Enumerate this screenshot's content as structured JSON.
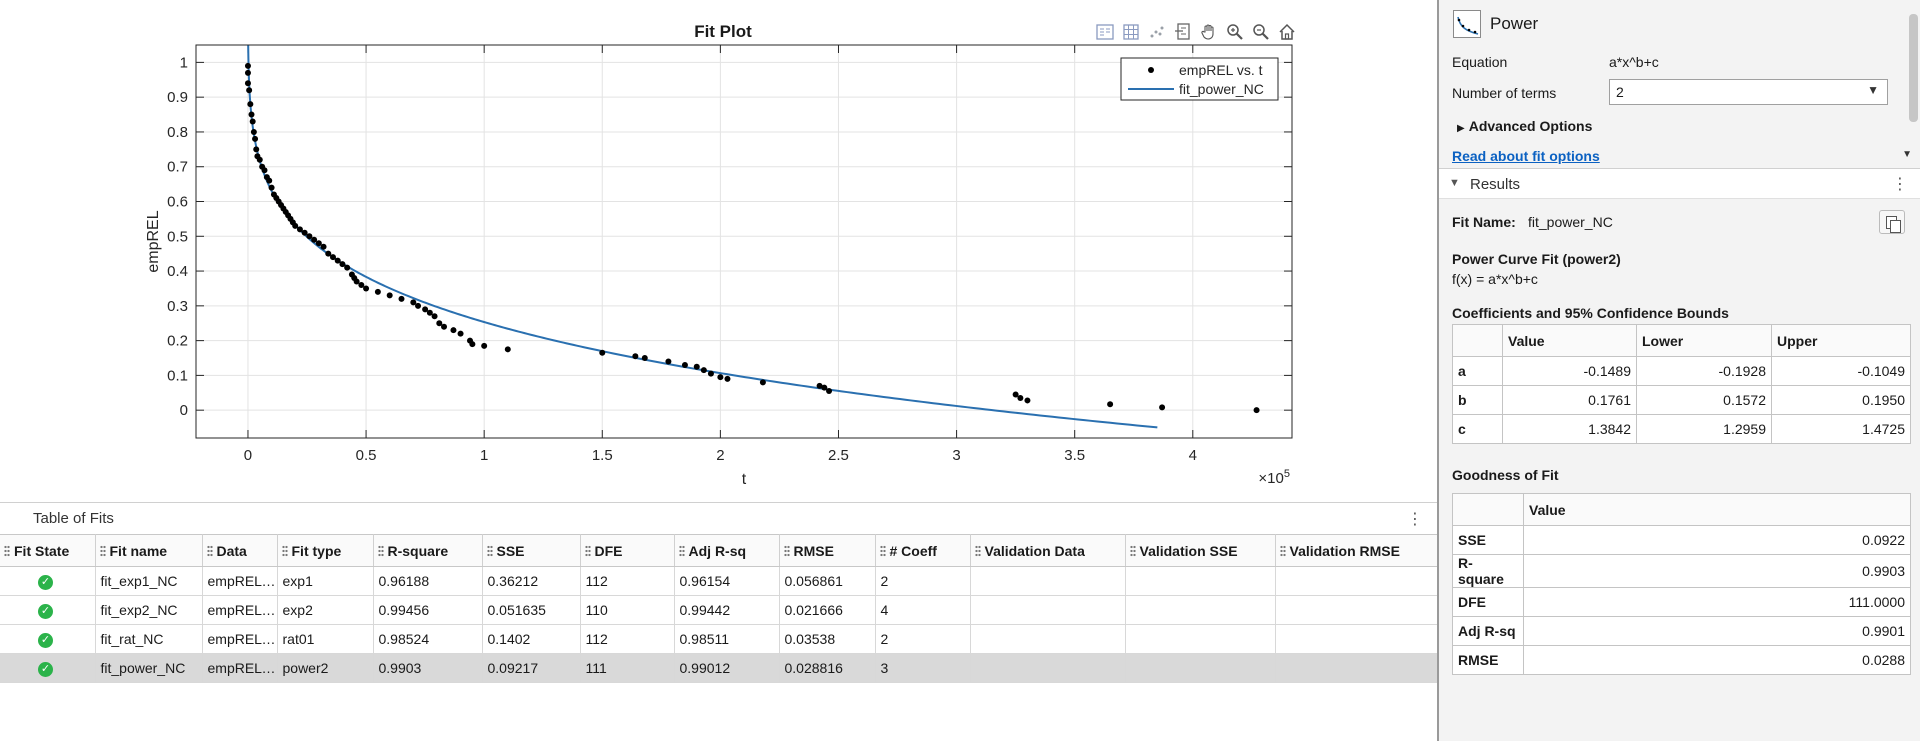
{
  "plot": {
    "title": "Fit Plot",
    "toolbar": [
      "legend-icon",
      "grid-icon",
      "data-cursor-icon",
      "exclude-icon",
      "pan-icon",
      "zoom-in-icon",
      "zoom-out-icon",
      "home-icon"
    ]
  },
  "chart_data": {
    "type": "scatter",
    "title": "Fit Plot",
    "xlabel": "t",
    "ylabel": "empREL",
    "x_exponent_label": "×10^5",
    "xlim": [
      -0.22,
      4.42
    ],
    "ylim": [
      -0.08,
      1.05
    ],
    "x_ticks": [
      0,
      0.5,
      1,
      1.5,
      2,
      2.5,
      3,
      3.5,
      4
    ],
    "x_tick_labels": [
      "0",
      "0.5",
      "1",
      "1.5",
      "2",
      "2.5",
      "3",
      "3.5",
      "4"
    ],
    "y_ticks": [
      0,
      0.1,
      0.2,
      0.3,
      0.4,
      0.5,
      0.6,
      0.7,
      0.8,
      0.9,
      1
    ],
    "y_tick_labels": [
      "0",
      "0.1",
      "0.2",
      "0.3",
      "0.4",
      "0.5",
      "0.6",
      "0.7",
      "0.8",
      "0.9",
      "1"
    ],
    "grid": true,
    "legend_position": "top-right",
    "series": [
      {
        "name": "empREL vs. t",
        "kind": "points",
        "color": "#000000",
        "x": [
          0.0,
          0.0,
          0.0,
          0.005,
          0.01,
          0.015,
          0.02,
          0.025,
          0.03,
          0.035,
          0.04,
          0.05,
          0.06,
          0.07,
          0.08,
          0.09,
          0.1,
          0.11,
          0.12,
          0.13,
          0.14,
          0.15,
          0.16,
          0.17,
          0.18,
          0.19,
          0.2,
          0.22,
          0.24,
          0.26,
          0.28,
          0.3,
          0.32,
          0.34,
          0.36,
          0.38,
          0.4,
          0.42,
          0.44,
          0.45,
          0.46,
          0.48,
          0.5,
          0.55,
          0.6,
          0.65,
          0.7,
          0.72,
          0.75,
          0.77,
          0.79,
          0.81,
          0.83,
          0.87,
          0.9,
          0.94,
          0.95,
          1.0,
          1.1,
          1.5,
          1.64,
          1.68,
          1.78,
          1.85,
          1.9,
          1.93,
          1.96,
          2.0,
          2.03,
          2.18,
          2.42,
          2.44,
          2.46,
          3.25,
          3.27,
          3.3,
          3.65,
          3.87,
          4.27
        ],
        "y": [
          0.99,
          0.97,
          0.94,
          0.92,
          0.88,
          0.85,
          0.83,
          0.8,
          0.78,
          0.75,
          0.73,
          0.72,
          0.7,
          0.69,
          0.67,
          0.66,
          0.64,
          0.62,
          0.61,
          0.6,
          0.59,
          0.58,
          0.57,
          0.56,
          0.55,
          0.54,
          0.53,
          0.52,
          0.51,
          0.5,
          0.49,
          0.48,
          0.47,
          0.45,
          0.44,
          0.43,
          0.42,
          0.41,
          0.39,
          0.38,
          0.37,
          0.36,
          0.35,
          0.34,
          0.33,
          0.32,
          0.31,
          0.3,
          0.29,
          0.28,
          0.27,
          0.25,
          0.24,
          0.23,
          0.22,
          0.2,
          0.19,
          0.185,
          0.175,
          0.165,
          0.155,
          0.15,
          0.14,
          0.13,
          0.125,
          0.115,
          0.105,
          0.095,
          0.09,
          0.08,
          0.07,
          0.065,
          0.055,
          0.045,
          0.035,
          0.028,
          0.017,
          0.008,
          0.0
        ]
      },
      {
        "name": "fit_power_NC",
        "kind": "line",
        "color": "#2a70b0",
        "equation": "f(x) = a*x^b+c",
        "a": -0.1489,
        "b": 0.1761,
        "c": 1.3842,
        "x_scale": 100000,
        "x_range": [
          2e-05,
          3.85
        ]
      }
    ]
  },
  "table_of_fits": {
    "title": "Table of Fits",
    "columns": [
      "Fit State",
      "Fit name",
      "Data",
      "Fit type",
      "R-square",
      "SSE",
      "DFE",
      "Adj R-sq",
      "RMSE",
      "# Coeff",
      "Validation Data",
      "Validation SSE",
      "Validation RMSE"
    ],
    "rows": [
      {
        "name": "fit_exp1_NC",
        "data": "empREL vs. t",
        "type": "exp1",
        "rsq": "0.96188",
        "sse": "0.36212",
        "dfe": "112",
        "adjrsq": "0.96154",
        "rmse": "0.056861",
        "ncoeff": "2",
        "vdata": "",
        "vsse": "",
        "vrmse": "",
        "selected": false
      },
      {
        "name": "fit_exp2_NC",
        "data": "empREL vs. t",
        "type": "exp2",
        "rsq": "0.99456",
        "sse": "0.051635",
        "dfe": "110",
        "adjrsq": "0.99442",
        "rmse": "0.021666",
        "ncoeff": "4",
        "vdata": "",
        "vsse": "",
        "vrmse": "",
        "selected": false
      },
      {
        "name": "fit_rat_NC",
        "data": "empREL vs. t",
        "type": "rat01",
        "rsq": "0.98524",
        "sse": "0.1402",
        "dfe": "112",
        "adjrsq": "0.98511",
        "rmse": "0.03538",
        "ncoeff": "2",
        "vdata": "",
        "vsse": "",
        "vrmse": "",
        "selected": false
      },
      {
        "name": "fit_power_NC",
        "data": "empREL vs. t",
        "type": "power2",
        "rsq": "0.9903",
        "sse": "0.09217",
        "dfe": "111",
        "adjrsq": "0.99012",
        "rmse": "0.028816",
        "ncoeff": "3",
        "vdata": "",
        "vsse": "",
        "vrmse": "",
        "selected": true
      }
    ]
  },
  "fit_options": {
    "fit_type": "Power",
    "equation_label": "Equation",
    "equation_value": "a*x^b+c",
    "terms_label": "Number of terms",
    "terms_value": "2",
    "advanced_label": "Advanced Options",
    "read_link": "Read about fit options"
  },
  "results": {
    "title": "Results",
    "fit_name_label": "Fit Name:",
    "fit_name_value": "fit_power_NC",
    "curve_title": "Power Curve Fit (power2)",
    "curve_equation": "f(x) = a*x^b+c",
    "coef_title": "Coefficients and 95% Confidence Bounds",
    "coef_columns": [
      "",
      "Value",
      "Lower",
      "Upper"
    ],
    "coef_rows": [
      [
        "a",
        "-0.1489",
        "-0.1928",
        "-0.1049"
      ],
      [
        "b",
        "0.1761",
        "0.1572",
        "0.1950"
      ],
      [
        "c",
        "1.3842",
        "1.2959",
        "1.4725"
      ]
    ],
    "gof_title": "Goodness of Fit",
    "gof_columns": [
      "",
      "Value"
    ],
    "gof_rows": [
      [
        "SSE",
        "0.0922"
      ],
      [
        "R-square",
        "0.9903"
      ],
      [
        "DFE",
        "111.0000"
      ],
      [
        "Adj R-sq",
        "0.9901"
      ],
      [
        "RMSE",
        "0.0288"
      ]
    ]
  }
}
